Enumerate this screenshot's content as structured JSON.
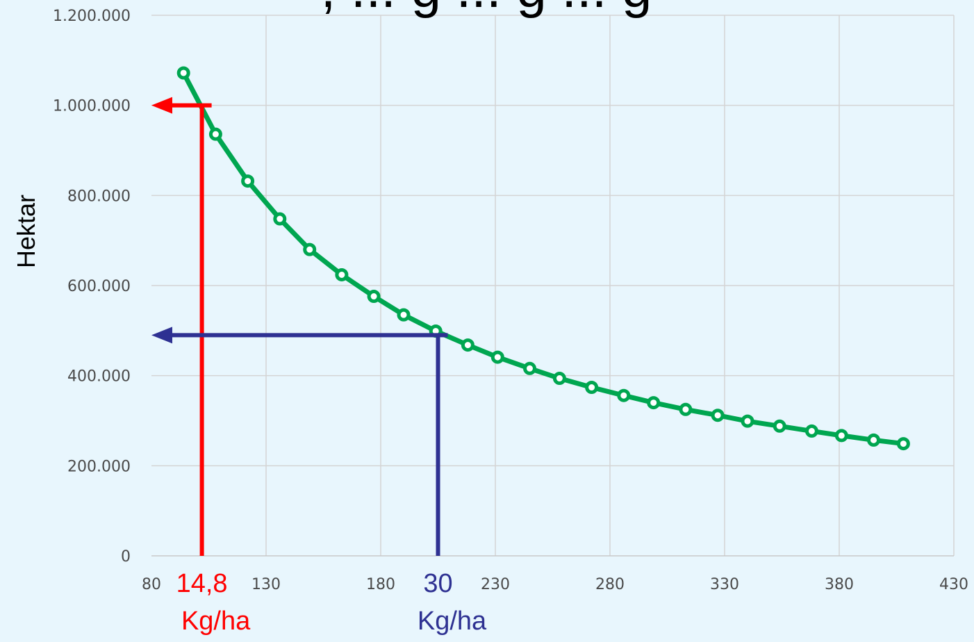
{
  "title_fragment": ", ... g ... g ... g",
  "chart_data": {
    "type": "line",
    "xlabel": "",
    "ylabel": "Hektar",
    "xlim": [
      80,
      430
    ],
    "ylim": [
      0,
      1200000
    ],
    "x_ticks": [
      80,
      130,
      180,
      230,
      280,
      330,
      380,
      430
    ],
    "y_ticks": [
      0,
      200000,
      400000,
      600000,
      800000,
      1000000,
      1200000
    ],
    "y_tick_labels": [
      "0",
      "200.000",
      "400.000",
      "600.000",
      "800.000",
      "1.000.000",
      "1.200.000"
    ],
    "grid": true,
    "series": [
      {
        "color": "#00a650",
        "x": [
          94,
          108,
          122,
          136,
          149,
          163,
          177,
          190,
          204,
          218,
          231,
          245,
          258,
          272,
          286,
          299,
          313,
          327,
          340,
          354,
          368,
          381,
          395,
          408
        ],
        "y": [
          1072000,
          936000,
          832000,
          748000,
          680000,
          624000,
          576000,
          535000,
          499000,
          468000,
          441000,
          416000,
          394000,
          374000,
          356000,
          340000,
          325000,
          312000,
          299000,
          288000,
          277000,
          267000,
          257000,
          249000
        ]
      }
    ],
    "annotations": [
      {
        "color": "#ff0000",
        "value_label": "14,8",
        "unit_label": "Kg/ha",
        "x": 102,
        "y": 1000000
      },
      {
        "color": "#2e3192",
        "value_label": "30",
        "unit_label": "Kg/ha",
        "x": 205,
        "y": 490000
      }
    ]
  }
}
